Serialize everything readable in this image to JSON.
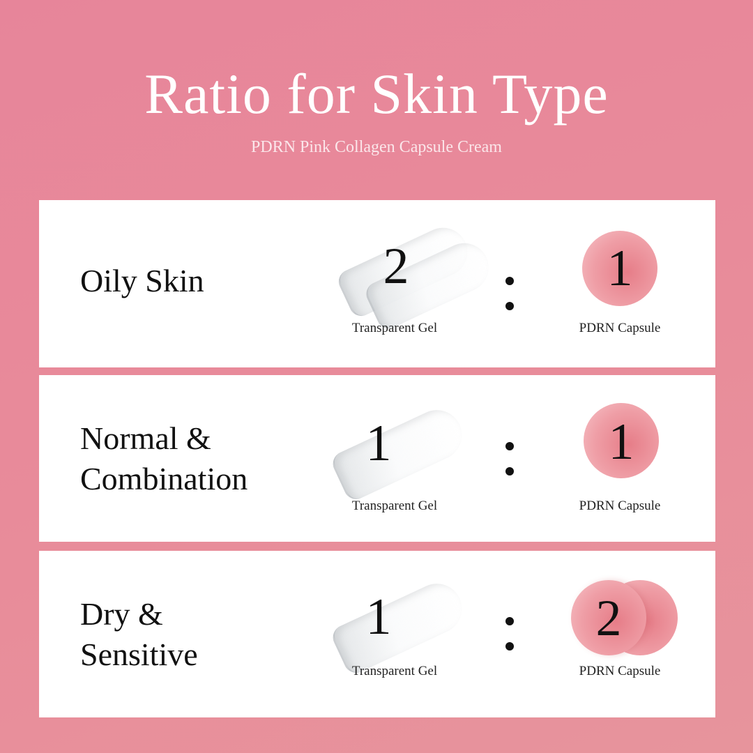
{
  "header": {
    "title": "Ratio for Skin Type",
    "subtitle": "PDRN Pink Collagen Capsule Cream"
  },
  "colors": {
    "background": "#e8899a",
    "card": "#ffffff",
    "capsule": "#ec929c"
  },
  "rows": [
    {
      "skin_type_line1": "Oily Skin",
      "skin_type_line2": "",
      "gel_ratio": "2",
      "capsule_ratio": "1",
      "gel_label": "Transparent Gel",
      "capsule_label": "PDRN Capsule",
      "separator": ":"
    },
    {
      "skin_type_line1": "Normal &",
      "skin_type_line2": "Combination",
      "gel_ratio": "1",
      "capsule_ratio": "1",
      "gel_label": "Transparent Gel",
      "capsule_label": "PDRN Capsule",
      "separator": ":"
    },
    {
      "skin_type_line1": "Dry &",
      "skin_type_line2": "Sensitive",
      "gel_ratio": "1",
      "capsule_ratio": "2",
      "gel_label": "Transparent Gel",
      "capsule_label": "PDRN Capsule",
      "separator": ":"
    }
  ]
}
